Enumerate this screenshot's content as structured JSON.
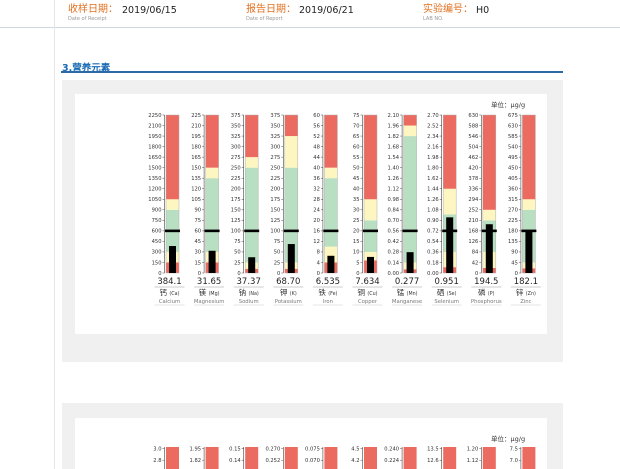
{
  "header": {
    "receipt_label": "收样日期：",
    "receipt_sub": "Date of Receipt",
    "receipt_value": "2019/06/15",
    "report_label": "报告日期：",
    "report_sub": "Date of Report",
    "report_value": "2019/06/21",
    "lab_label": "实验编号：",
    "lab_sub": "LAB NO.",
    "lab_value": "H0"
  },
  "section_title": "3.营养元素",
  "unit_label": "单位：μg/g",
  "unit_label_2": "单位：μg/g",
  "colors": {
    "red": "#ec6b61",
    "yellow": "#fdf6c0",
    "green": "#b9dfc2",
    "bar": "#000000"
  },
  "chart_data": {
    "type": "bar",
    "title": "",
    "orientation": "vertical gauge columns with red / yellow / green reference zones",
    "columns": [
      {
        "cn": "钙",
        "sym": "(Ca)",
        "en": "Calcium",
        "value": "384.1",
        "ticks": [
          "2250",
          "2100",
          "1950",
          "1800",
          "1650",
          "1500",
          "1350",
          "1200",
          "1050",
          "900",
          "750",
          "600",
          "450",
          "300",
          "150",
          "0"
        ],
        "max": 2250,
        "v": 384.1,
        "ref": 600,
        "bands": [
          150,
          300,
          900,
          1050
        ]
      },
      {
        "cn": "镁",
        "sym": "(Mg)",
        "en": "Magnesium",
        "value": "31.65",
        "ticks": [
          "225",
          "210",
          "195",
          "180",
          "165",
          "150",
          "135",
          "120",
          "105",
          "90",
          "75",
          "60",
          "45",
          "30",
          "15",
          "0"
        ],
        "max": 225,
        "v": 31.65,
        "ref": 60,
        "bands": [
          15,
          30,
          135,
          150
        ]
      },
      {
        "cn": "钠",
        "sym": "(Na)",
        "en": "Sodium",
        "value": "37.37",
        "ticks": [
          "375",
          "350",
          "325",
          "300",
          "275",
          "250",
          "225",
          "200",
          "175",
          "150",
          "125",
          "100",
          "75",
          "50",
          "25",
          "0"
        ],
        "max": 375,
        "v": 37.37,
        "ref": 100,
        "bands": [
          10,
          25,
          250,
          275
        ]
      },
      {
        "cn": "钾",
        "sym": "(K)",
        "en": "Potassium",
        "value": "68.70",
        "ticks": [
          "375",
          "350",
          "325",
          "300",
          "275",
          "250",
          "225",
          "200",
          "175",
          "150",
          "125",
          "100",
          "75",
          "50",
          "25",
          "0"
        ],
        "max": 375,
        "v": 68.7,
        "ref": 100,
        "bands": [
          10,
          25,
          250,
          325
        ]
      },
      {
        "cn": "铁",
        "sym": "(Fe)",
        "en": "Iron",
        "value": "6.535",
        "ticks": [
          "60",
          "56",
          "52",
          "48",
          "44",
          "40",
          "36",
          "32",
          "28",
          "24",
          "20",
          "16",
          "12",
          "8",
          "4",
          "0"
        ],
        "max": 60,
        "v": 6.535,
        "ref": 16,
        "bands": [
          4,
          10,
          36,
          40
        ]
      },
      {
        "cn": "铜",
        "sym": "(Cu)",
        "en": "Copper",
        "value": "7.634",
        "ticks": [
          "75",
          "70",
          "65",
          "60",
          "55",
          "50",
          "45",
          "40",
          "35",
          "30",
          "25",
          "20",
          "15",
          "10",
          "5",
          "0"
        ],
        "max": 75,
        "v": 7.634,
        "ref": 20,
        "bands": [
          6,
          10,
          25,
          35
        ]
      },
      {
        "cn": "锰",
        "sym": "(Mn)",
        "en": "Manganese",
        "value": "0.277",
        "ticks": [
          "2.10",
          "1.96",
          "1.82",
          "1.68",
          "1.54",
          "1.40",
          "1.26",
          "1.12",
          "0.98",
          "0.84",
          "0.70",
          "0.56",
          "0.42",
          "0.28",
          "0.14",
          "0.00"
        ],
        "max": 2.1,
        "v": 0.277,
        "ref": 0.56,
        "bands": [
          0.05,
          0.14,
          1.82,
          1.96
        ]
      },
      {
        "cn": "硒",
        "sym": "(Se)",
        "en": "Selenium",
        "value": "0.951",
        "ticks": [
          "2.70",
          "2.52",
          "2.34",
          "2.16",
          "1.98",
          "1.80",
          "1.62",
          "1.44",
          "1.26",
          "1.08",
          "0.90",
          "0.72",
          "0.54",
          "0.36",
          "0.18",
          "0.00"
        ],
        "max": 2.7,
        "v": 0.951,
        "ref": 0.72,
        "bands": [
          0.1,
          0.36,
          1.0,
          1.44
        ]
      },
      {
        "cn": "磷",
        "sym": "(P)",
        "en": "Phosphorus",
        "value": "194.5",
        "ticks": [
          "630",
          "588",
          "546",
          "504",
          "462",
          "420",
          "378",
          "336",
          "294",
          "252",
          "210",
          "168",
          "126",
          "84",
          "42",
          "0"
        ],
        "max": 630,
        "v": 194.5,
        "ref": 168,
        "bands": [
          20,
          84,
          210,
          252
        ]
      },
      {
        "cn": "锌",
        "sym": "(Zn)",
        "en": "Zinc",
        "value": "182.1",
        "ticks": [
          "675",
          "630",
          "585",
          "540",
          "495",
          "450",
          "405",
          "360",
          "315",
          "270",
          "225",
          "180",
          "135",
          "90",
          "45",
          "0"
        ],
        "max": 675,
        "v": 182.1,
        "ref": 180,
        "bands": [
          20,
          45,
          270,
          315
        ]
      }
    ]
  },
  "chart2_preview": {
    "tick_top": [
      "3.0",
      "1.95",
      "0.15",
      "0.270",
      "0.075",
      "4.5",
      "0.240",
      "13.5",
      "1.20",
      "7.5"
    ],
    "tick_second": [
      "2.8",
      "1.82",
      "0.14",
      "0.252",
      "0.070",
      "4.2",
      "0.224",
      "12.6",
      "1.12",
      "7.0"
    ]
  }
}
